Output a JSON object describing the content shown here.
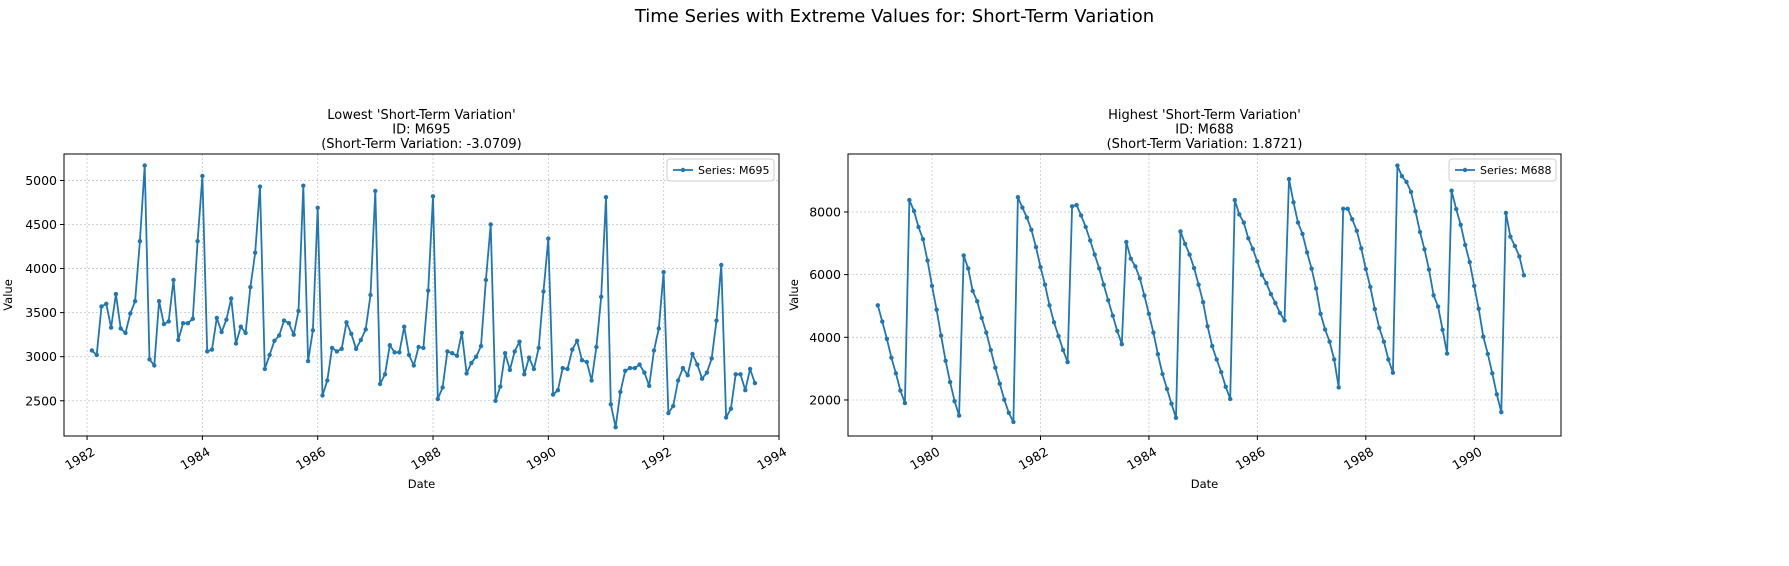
{
  "suptitle": "Time Series with Extreme Values for: Short-Term Variation",
  "chart_data": [
    {
      "type": "line",
      "title": [
        "Lowest 'Short-Term Variation'",
        "ID: M695",
        "(Short-Term Variation: -3.0709)"
      ],
      "xlabel": "Date",
      "ylabel": "Value",
      "legend": "Series: M695",
      "legend_loc": "upper right",
      "grid": true,
      "xlim": [
        1981.6,
        1994.0
      ],
      "ylim": [
        2100,
        5300
      ],
      "xticks": [
        1982,
        1984,
        1986,
        1988,
        1990,
        1992,
        1994
      ],
      "yticks": [
        2500,
        3000,
        3500,
        4000,
        4500,
        5000
      ],
      "x_start": 1982.083,
      "x_step": 0.08333,
      "values": [
        3070,
        3020,
        3570,
        3600,
        3330,
        3710,
        3320,
        3270,
        3490,
        3630,
        4310,
        5170,
        2970,
        2900,
        3630,
        3370,
        3400,
        3870,
        3190,
        3380,
        3380,
        3430,
        4310,
        5050,
        3060,
        3080,
        3440,
        3280,
        3420,
        3660,
        3150,
        3340,
        3270,
        3790,
        4180,
        4930,
        2860,
        3020,
        3180,
        3240,
        3410,
        3380,
        3250,
        3520,
        4940,
        2950,
        3300,
        4690,
        2560,
        2730,
        3100,
        3060,
        3090,
        3390,
        3260,
        3090,
        3190,
        3310,
        3700,
        4880,
        2690,
        2800,
        3130,
        3050,
        3050,
        3340,
        3020,
        2900,
        3110,
        3100,
        3750,
        4820,
        2520,
        2650,
        3060,
        3040,
        3010,
        3270,
        2810,
        2930,
        3000,
        3120,
        3870,
        4500,
        2500,
        2660,
        3040,
        2850,
        3060,
        3170,
        2800,
        2990,
        2860,
        3100,
        3740,
        4340,
        2570,
        2620,
        2870,
        2860,
        3080,
        3180,
        2960,
        2940,
        2730,
        3110,
        3680,
        4810,
        2460,
        2200,
        2600,
        2840,
        2870,
        2870,
        2910,
        2820,
        2670,
        3070,
        3320,
        3960,
        2360,
        2440,
        2730,
        2870,
        2790,
        3030,
        2910,
        2750,
        2820,
        2980,
        3410,
        4040,
        2310,
        2410,
        2800,
        2800,
        2620,
        2860,
        2700
      ]
    },
    {
      "type": "line",
      "title": [
        "Highest 'Short-Term Variation'",
        "ID: M688",
        "(Short-Term Variation: 1.8721)"
      ],
      "xlabel": "Date",
      "ylabel": "Value",
      "legend": "Series: M688",
      "legend_loc": "upper right",
      "grid": true,
      "xlim": [
        1978.45,
        1991.6
      ],
      "ylim": [
        850,
        9850
      ],
      "xticks": [
        1980,
        1982,
        1984,
        1986,
        1988,
        1990
      ],
      "yticks": [
        2000,
        4000,
        6000,
        8000
      ],
      "x_start": 1979.0,
      "x_step": 0.08333,
      "values": [
        5020,
        4500,
        3950,
        3350,
        2850,
        2300,
        1900,
        8380,
        8030,
        7520,
        7130,
        6450,
        5640,
        4880,
        4050,
        3250,
        2570,
        1960,
        1500,
        6610,
        6200,
        5480,
        5150,
        4620,
        4150,
        3590,
        3030,
        2520,
        2010,
        1590,
        1300,
        8470,
        8140,
        7820,
        7430,
        6880,
        6240,
        5680,
        5020,
        4480,
        4040,
        3590,
        3210,
        8180,
        8220,
        7890,
        7520,
        7090,
        6640,
        6200,
        5680,
        5180,
        4690,
        4200,
        3780,
        7040,
        6510,
        6260,
        5880,
        5330,
        4750,
        4150,
        3460,
        2830,
        2350,
        1880,
        1430,
        7380,
        6980,
        6640,
        6210,
        5680,
        5120,
        4350,
        3720,
        3290,
        2890,
        2420,
        2030,
        8380,
        7920,
        7660,
        7160,
        6820,
        6420,
        5990,
        5730,
        5380,
        5090,
        4780,
        4540,
        9050,
        8310,
        7660,
        7300,
        6710,
        6190,
        5560,
        4750,
        4250,
        3860,
        3290,
        2400,
        8100,
        8100,
        7770,
        7400,
        6840,
        6180,
        5610,
        4900,
        4300,
        3860,
        3290,
        2870,
        9480,
        9140,
        8960,
        8640,
        8020,
        7360,
        6810,
        6160,
        5340,
        4980,
        4240,
        3480,
        8680,
        8090,
        7590,
        6950,
        6400,
        5640,
        4910,
        4020,
        3470,
        2850,
        2180,
        1610,
        7970,
        7210,
        6910,
        6580,
        5980
      ]
    }
  ]
}
